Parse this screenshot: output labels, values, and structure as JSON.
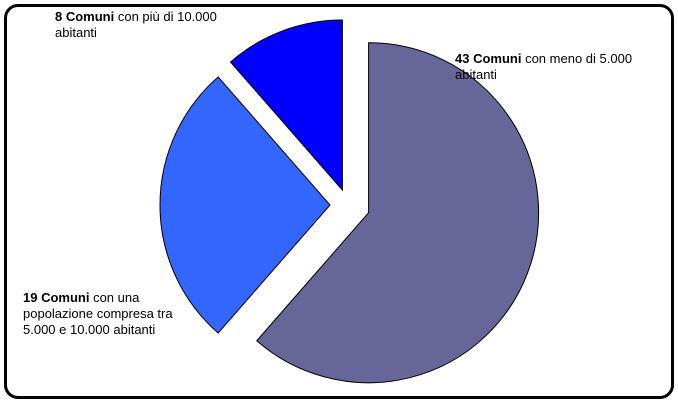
{
  "chart_data": {
    "type": "pie",
    "exploded": true,
    "slices": [
      {
        "value": 43,
        "label_bold": "43 Comuni",
        "label_rest": " con meno di 5.000 abitanti",
        "color": "#666699"
      },
      {
        "value": 19,
        "label_bold": "19 Comuni",
        "label_rest": " con una popolazione compresa tra 5.000 e 10.000 abitanti",
        "color": "#3366ff"
      },
      {
        "value": 8,
        "label_bold": "8 Comuni",
        "label_rest": " con più di 10.000 abitanti",
        "color": "#0000ff"
      }
    ]
  }
}
